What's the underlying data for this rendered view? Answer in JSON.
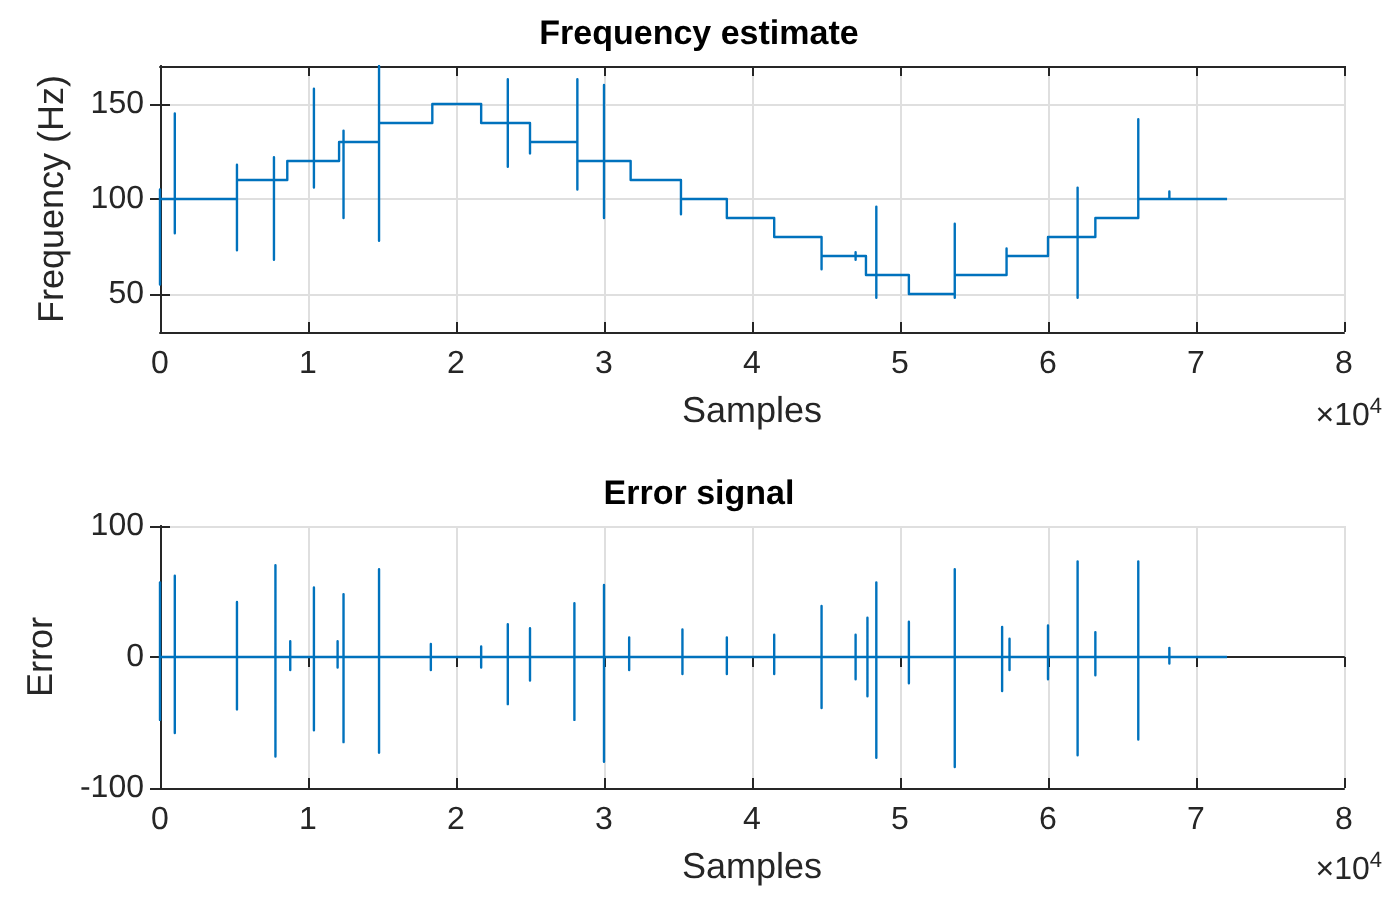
{
  "chart_data": [
    {
      "type": "line",
      "title": "Frequency estimate",
      "xlabel": "Samples",
      "ylabel": "Frequency (Hz)",
      "annotations": [
        "×10$^{4}$"
      ],
      "grid": true,
      "marker": "none",
      "line_style": "solid",
      "xlim": [
        0,
        8
      ],
      "xticks": [
        0,
        1,
        2,
        3,
        4,
        5,
        6,
        7,
        8
      ],
      "ylim": [
        30,
        170
      ],
      "yticks": [
        50,
        100,
        150
      ],
      "series": [
        {
          "color": "#0072bd",
          "x": [
            0,
            0,
            0,
            0,
            0.1,
            0.1,
            0.1,
            0.1,
            0.52,
            0.52,
            0.52,
            0.52,
            0.77,
            0.77,
            0.77,
            0.77,
            0.86,
            0.86,
            1.04,
            1.04,
            1.04,
            1.04,
            1.21,
            1.21,
            1.24,
            1.24,
            1.24,
            1.24,
            1.48,
            1.48,
            1.48,
            1.48,
            1.84,
            1.84,
            2.17,
            2.17,
            2.35,
            2.35,
            2.35,
            2.35,
            2.5,
            2.5,
            2.5,
            2.82,
            2.82,
            2.82,
            2.82,
            3.0,
            3.0,
            3.0,
            3.0,
            3.18,
            3.18,
            3.52,
            3.52,
            3.52,
            3.83,
            3.83,
            4.15,
            4.15,
            4.47,
            4.47,
            4.47,
            4.7,
            4.7,
            4.7,
            4.7,
            4.77,
            4.77,
            4.84,
            4.84,
            4.84,
            4.84,
            5.06,
            5.06,
            5.37,
            5.37,
            5.37,
            5.37,
            5.72,
            5.72,
            5.72,
            5.72,
            6.0,
            6.0,
            6.2,
            6.2,
            6.2,
            6.2,
            6.32,
            6.32,
            6.61,
            6.61,
            6.61,
            6.82,
            6.82,
            6.82,
            7.21
          ],
          "values": [
            100,
            55,
            105,
            100,
            100,
            145,
            82,
            100,
            100,
            73,
            118,
            110,
            110,
            68,
            122,
            110,
            110,
            120,
            120,
            158,
            106,
            120,
            120,
            130,
            130,
            136,
            90,
            130,
            130,
            170,
            78,
            140,
            140,
            150,
            150,
            140,
            140,
            163,
            117,
            140,
            140,
            124,
            130,
            130,
            163,
            105,
            120,
            120,
            160,
            90,
            120,
            120,
            110,
            110,
            92,
            100,
            100,
            90,
            90,
            80,
            80,
            63,
            70,
            70,
            72,
            68,
            70,
            70,
            60,
            60,
            96,
            48,
            60,
            60,
            50,
            50,
            87,
            48,
            60,
            60,
            74,
            67,
            70,
            70,
            80,
            80,
            106,
            48,
            80,
            80,
            90,
            90,
            142,
            100,
            100,
            104,
            100,
            100
          ]
        }
      ]
    },
    {
      "type": "line",
      "title": "Error signal",
      "xlabel": "Samples",
      "ylabel": "Error",
      "annotations": [
        "×10$^{4}$"
      ],
      "grid": true,
      "marker": "none",
      "line_style": "solid",
      "xlim": [
        0,
        8
      ],
      "xticks": [
        0,
        1,
        2,
        3,
        4,
        5,
        6,
        7,
        8
      ],
      "ylim": [
        -100,
        100
      ],
      "yticks": [
        -100,
        0,
        100
      ],
      "series": [
        {
          "color": "#0072bd",
          "x": [
            0,
            0,
            0,
            0,
            0.1,
            0.1,
            0.1,
            0.1,
            0.52,
            0.52,
            0.52,
            0.52,
            0.78,
            0.78,
            0.78,
            0.78,
            0.88,
            0.88,
            0.88,
            0.88,
            1.04,
            1.04,
            1.04,
            1.04,
            1.2,
            1.2,
            1.2,
            1.2,
            1.24,
            1.24,
            1.24,
            1.24,
            1.48,
            1.48,
            1.48,
            1.48,
            1.83,
            1.83,
            1.83,
            1.83,
            2.17,
            2.17,
            2.17,
            2.17,
            2.35,
            2.35,
            2.35,
            2.35,
            2.5,
            2.5,
            2.5,
            2.5,
            2.8,
            2.8,
            2.8,
            2.8,
            3.0,
            3.0,
            3.0,
            3.0,
            3.17,
            3.17,
            3.17,
            3.17,
            3.53,
            3.53,
            3.53,
            3.53,
            3.83,
            3.83,
            3.83,
            3.83,
            4.15,
            4.15,
            4.15,
            4.15,
            4.47,
            4.47,
            4.47,
            4.47,
            4.7,
            4.7,
            4.7,
            4.7,
            4.78,
            4.78,
            4.78,
            4.78,
            4.84,
            4.84,
            4.84,
            4.84,
            5.06,
            5.06,
            5.06,
            5.06,
            5.37,
            5.37,
            5.37,
            5.37,
            5.69,
            5.69,
            5.69,
            5.69,
            5.74,
            5.74,
            5.74,
            5.74,
            6.0,
            6.0,
            6.0,
            6.0,
            6.2,
            6.2,
            6.2,
            6.2,
            6.32,
            6.32,
            6.32,
            6.32,
            6.61,
            6.61,
            6.61,
            6.61,
            6.82,
            6.82,
            6.82,
            6.82,
            7.21
          ],
          "values": [
            0,
            57,
            -48,
            0,
            0,
            62,
            -58,
            0,
            0,
            42,
            -40,
            0,
            0,
            70,
            -76,
            0,
            0,
            12,
            -10,
            0,
            0,
            53,
            -56,
            0,
            0,
            12,
            -8,
            0,
            0,
            48,
            -65,
            0,
            0,
            67,
            -73,
            0,
            0,
            10,
            -10,
            0,
            0,
            8,
            -8,
            0,
            0,
            25,
            -36,
            0,
            0,
            22,
            -18,
            0,
            0,
            41,
            -48,
            0,
            0,
            55,
            -80,
            0,
            0,
            15,
            -10,
            0,
            0,
            21,
            -13,
            0,
            0,
            15,
            -13,
            0,
            0,
            17,
            -13,
            0,
            0,
            39,
            -39,
            0,
            0,
            17,
            -17,
            0,
            0,
            30,
            -30,
            0,
            0,
            57,
            -77,
            0,
            0,
            27,
            -20,
            0,
            0,
            67,
            -84,
            0,
            0,
            23,
            -26,
            0,
            0,
            14,
            -10,
            0,
            0,
            24,
            -17,
            0,
            0,
            73,
            -75,
            0,
            0,
            19,
            -14,
            0,
            0,
            73,
            -63,
            0,
            0,
            7,
            -5,
            0,
            0
          ]
        }
      ]
    }
  ]
}
